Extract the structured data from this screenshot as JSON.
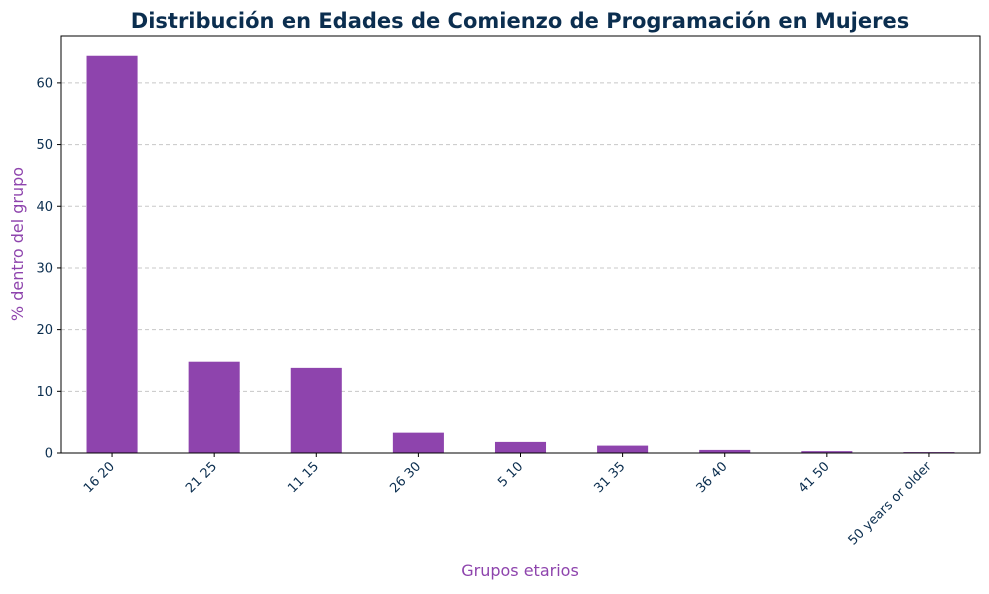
{
  "chart_data": {
    "type": "bar",
    "title": "Distribución en Edades de Comienzo de Programación en Mujeres",
    "xlabel": "Grupos etarios",
    "ylabel": "% dentro del grupo",
    "categories": [
      "16 20",
      "21 25",
      "11 15",
      "26 30",
      "5 10",
      "31 35",
      "36 40",
      "41 50",
      "50 years or older"
    ],
    "values": [
      64.4,
      14.8,
      13.8,
      3.3,
      1.8,
      1.2,
      0.5,
      0.3,
      0.15
    ],
    "ylim": [
      0,
      67.6
    ],
    "yticks": [
      0,
      10,
      20,
      30,
      40,
      50,
      60
    ],
    "grid": "y-dashed",
    "legend": "none",
    "colors": {
      "bar": "#8e44ad",
      "title": "#0b2e4f",
      "axis_label": "#8e44ad",
      "tick_label": "#0b2e4f"
    }
  }
}
